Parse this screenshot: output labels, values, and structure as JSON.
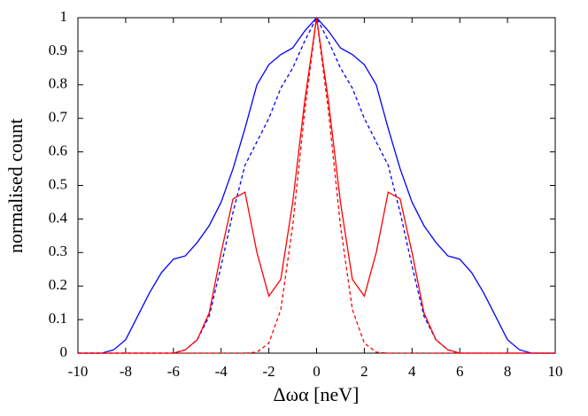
{
  "chart_data": {
    "type": "line",
    "xlabel": "Δωα [neV]",
    "ylabel": "normalised count",
    "x": [
      -10,
      -9.5,
      -9,
      -8.5,
      -8,
      -7.5,
      -7,
      -6.5,
      -6,
      -5.5,
      -5,
      -4.5,
      -4,
      -3.5,
      -3,
      -2.5,
      -2,
      -1.5,
      -1,
      -0.5,
      0,
      0.5,
      1,
      1.5,
      2,
      2.5,
      3,
      3.5,
      4,
      4.5,
      5,
      5.5,
      6,
      6.5,
      7,
      7.5,
      8,
      8.5,
      9,
      9.5,
      10
    ],
    "series": [
      {
        "color": "#0000ff",
        "dashed": false,
        "values": [
          0,
          0,
          0,
          0.01,
          0.04,
          0.11,
          0.18,
          0.24,
          0.28,
          0.29,
          0.33,
          0.38,
          0.45,
          0.55,
          0.67,
          0.8,
          0.86,
          0.89,
          0.91,
          0.96,
          1,
          0.96,
          0.91,
          0.89,
          0.86,
          0.8,
          0.67,
          0.55,
          0.45,
          0.38,
          0.33,
          0.29,
          0.28,
          0.24,
          0.18,
          0.11,
          0.04,
          0.01,
          0,
          0,
          0
        ]
      },
      {
        "color": "#0000ff",
        "dashed": true,
        "values": [
          0,
          0,
          0,
          0,
          0,
          0,
          0,
          0,
          0,
          0.01,
          0.04,
          0.11,
          0.26,
          0.42,
          0.56,
          0.63,
          0.7,
          0.79,
          0.85,
          0.93,
          1,
          0.93,
          0.85,
          0.79,
          0.7,
          0.63,
          0.56,
          0.42,
          0.26,
          0.11,
          0.04,
          0.01,
          0,
          0,
          0,
          0,
          0,
          0,
          0,
          0,
          0
        ]
      },
      {
        "color": "#ff0000",
        "dashed": false,
        "values": [
          0,
          0,
          0,
          0,
          0,
          0,
          0,
          0,
          0,
          0.01,
          0.04,
          0.12,
          0.3,
          0.46,
          0.48,
          0.3,
          0.17,
          0.22,
          0.45,
          0.75,
          1,
          0.75,
          0.45,
          0.22,
          0.17,
          0.3,
          0.48,
          0.46,
          0.3,
          0.12,
          0.04,
          0.01,
          0,
          0,
          0,
          0,
          0,
          0,
          0,
          0,
          0
        ]
      },
      {
        "color": "#ff0000",
        "dashed": true,
        "values": [
          0,
          0,
          0,
          0,
          0,
          0,
          0,
          0,
          0,
          0,
          0,
          0,
          0,
          0,
          0,
          0.003,
          0.03,
          0.13,
          0.38,
          0.72,
          1,
          0.72,
          0.38,
          0.13,
          0.03,
          0.003,
          0,
          0,
          0,
          0,
          0,
          0,
          0,
          0,
          0,
          0,
          0,
          0,
          0,
          0,
          0
        ]
      }
    ],
    "xlim": [
      -10,
      10
    ],
    "xticks": [
      -10,
      -8,
      -6,
      -4,
      -2,
      0,
      2,
      4,
      6,
      8,
      10
    ],
    "ylim": [
      0,
      1
    ],
    "yticks": [
      0,
      0.1,
      0.2,
      0.3,
      0.4,
      0.5,
      0.6,
      0.7,
      0.8,
      0.9,
      1
    ],
    "grid": false
  }
}
